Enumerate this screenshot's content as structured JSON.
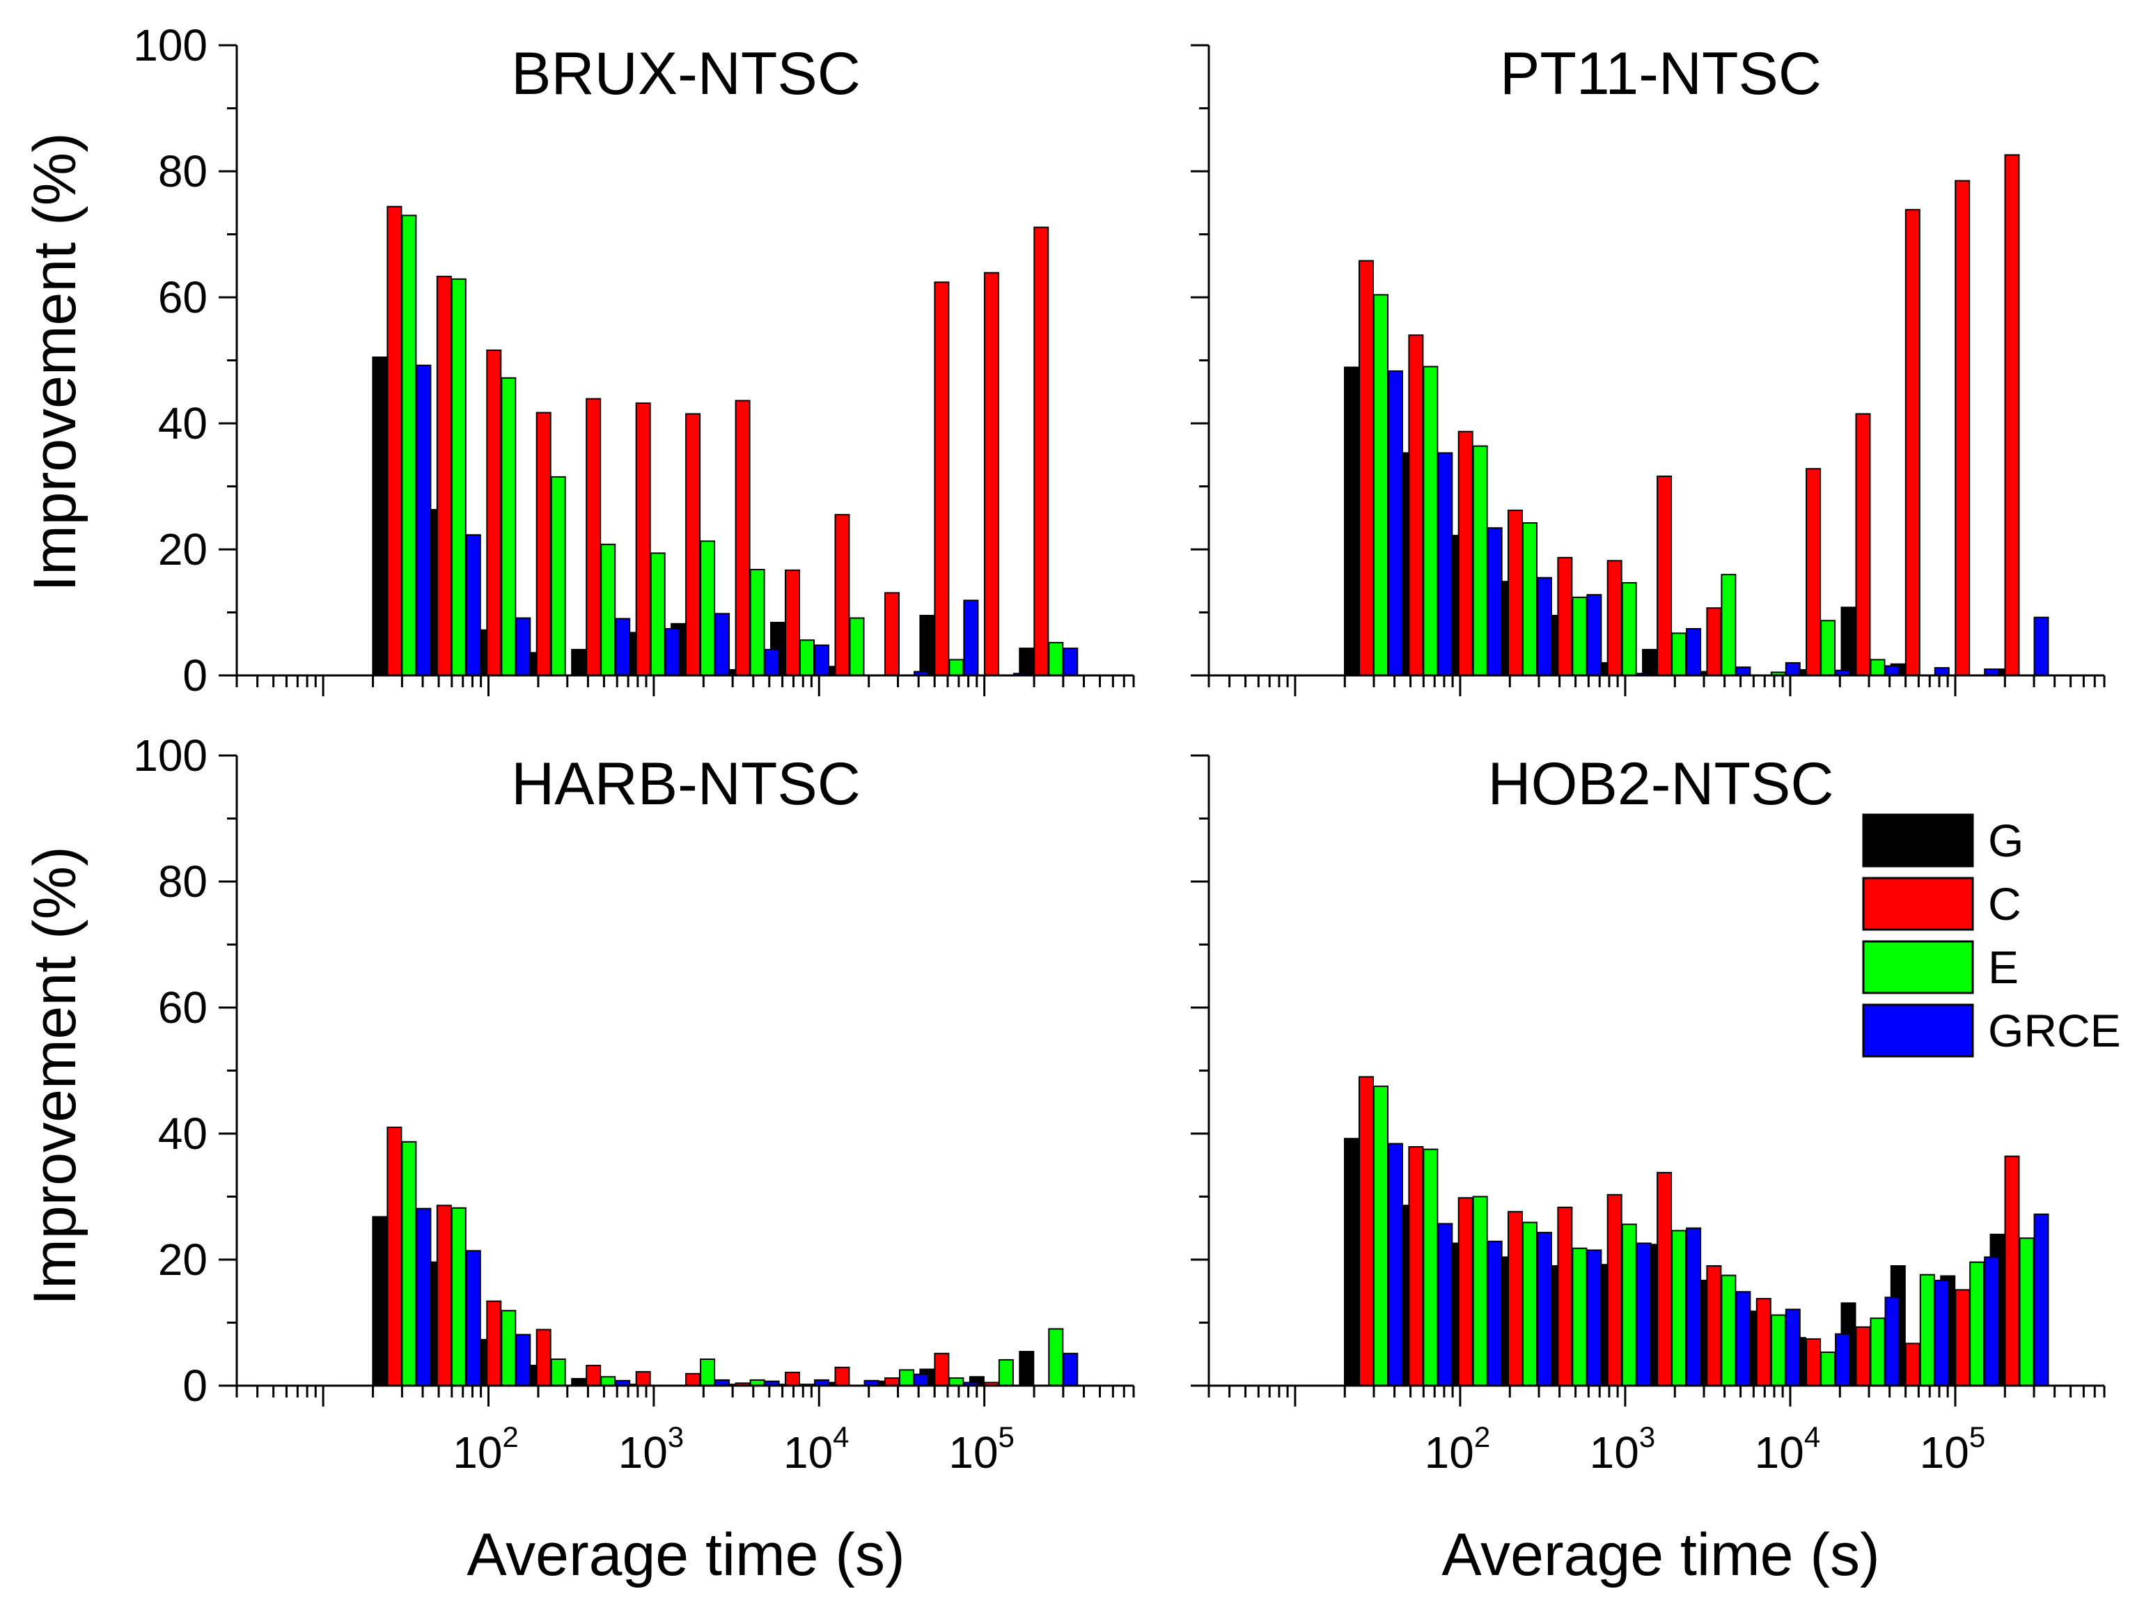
{
  "figure": {
    "ylabel": "Improvement (%)",
    "xlabel": "Average time (s)",
    "yticks": [
      "0",
      "20",
      "40",
      "60",
      "80",
      "100"
    ],
    "xticks": [
      {
        "base": "10",
        "exp": "2"
      },
      {
        "base": "10",
        "exp": "3"
      },
      {
        "base": "10",
        "exp": "4"
      },
      {
        "base": "10",
        "exp": "5"
      }
    ]
  },
  "legend": [
    {
      "label": "G",
      "color": "#000000"
    },
    {
      "label": "C",
      "color": "#ff0000"
    },
    {
      "label": "E",
      "color": "#00ff00"
    },
    {
      "label": "GRCE",
      "color": "#0000ff"
    }
  ],
  "chart_data": [
    {
      "type": "bar",
      "title": "BRUX-NTSC",
      "xlabel": "Average time (s)",
      "ylabel": "Improvement (%)",
      "xscale": "log",
      "xlim": [
        3,
        800000
      ],
      "ylim": [
        0,
        100
      ],
      "x": [
        30,
        60,
        120,
        240,
        480,
        960,
        1920,
        3840,
        7680,
        15360,
        30720,
        61440,
        122880,
        245760
      ],
      "series": [
        {
          "name": "G",
          "values": [
            50.5,
            26.3,
            7.2,
            3.6,
            4.1,
            6.8,
            8.2,
            0.9,
            8.4,
            1.4,
            0,
            9.5,
            0,
            4.3
          ]
        },
        {
          "name": "C",
          "values": [
            74.4,
            63.3,
            51.6,
            41.7,
            43.9,
            43.2,
            41.5,
            43.6,
            16.7,
            25.5,
            13.1,
            62.4,
            63.9,
            71.1
          ]
        },
        {
          "name": "E",
          "values": [
            73.0,
            62.9,
            47.2,
            31.5,
            20.8,
            19.4,
            21.3,
            16.8,
            5.6,
            9.1,
            0,
            2.5,
            0,
            5.2
          ]
        },
        {
          "name": "GRCE",
          "values": [
            49.2,
            22.3,
            9.1,
            0,
            9.0,
            7.4,
            9.8,
            4.1,
            4.8,
            0,
            0.6,
            11.9,
            0.3,
            4.3
          ]
        }
      ]
    },
    {
      "type": "bar",
      "title": "PT11-NTSC",
      "xlabel": "Average time (s)",
      "ylabel": "Improvement (%)",
      "xscale": "log",
      "xlim": [
        3,
        800000
      ],
      "ylim": [
        0,
        100
      ],
      "x": [
        30,
        60,
        120,
        240,
        480,
        960,
        1920,
        3840,
        7680,
        15360,
        30720,
        61440,
        122880,
        245760
      ],
      "series": [
        {
          "name": "G",
          "values": [
            48.9,
            35.3,
            22.2,
            14.9,
            9.5,
            2.0,
            4.1,
            0.6,
            0,
            0.9,
            10.8,
            1.8,
            0,
            1.0
          ]
        },
        {
          "name": "C",
          "values": [
            65.8,
            54.0,
            38.7,
            26.2,
            18.7,
            18.2,
            31.6,
            10.7,
            0,
            32.8,
            41.5,
            73.9,
            78.5,
            82.6
          ]
        },
        {
          "name": "E",
          "values": [
            60.4,
            49.0,
            36.4,
            24.2,
            12.4,
            14.7,
            6.7,
            16.0,
            0.5,
            8.7,
            2.5,
            0,
            0,
            0
          ]
        },
        {
          "name": "GRCE",
          "values": [
            48.3,
            35.3,
            23.4,
            15.5,
            12.8,
            0.3,
            7.4,
            1.3,
            2.0,
            0.8,
            1.5,
            1.2,
            1.0,
            9.2
          ]
        }
      ]
    },
    {
      "type": "bar",
      "title": "HARB-NTSC",
      "xlabel": "Average time (s)",
      "ylabel": "Improvement (%)",
      "xscale": "log",
      "xlim": [
        3,
        800000
      ],
      "ylim": [
        0,
        100
      ],
      "x": [
        30,
        60,
        120,
        240,
        480,
        960,
        1920,
        3840,
        7680,
        15360,
        30720,
        61440,
        122880,
        245760
      ],
      "series": [
        {
          "name": "G",
          "values": [
            26.8,
            19.6,
            7.3,
            3.2,
            1.1,
            0.2,
            0,
            0.2,
            0.2,
            0.5,
            0.7,
            2.6,
            1.4,
            5.4
          ]
        },
        {
          "name": "C",
          "values": [
            41.0,
            28.6,
            13.4,
            8.9,
            3.2,
            2.2,
            1.9,
            0.4,
            2.1,
            2.9,
            1.2,
            5.1,
            0.5,
            0
          ]
        },
        {
          "name": "E",
          "values": [
            38.7,
            28.2,
            11.9,
            4.2,
            1.4,
            0,
            4.2,
            0.9,
            0.2,
            0,
            2.5,
            1.2,
            4.1,
            9.0
          ]
        },
        {
          "name": "GRCE",
          "values": [
            28.1,
            21.4,
            8.1,
            0,
            0.8,
            0,
            0.9,
            0.7,
            0.9,
            0.8,
            1.8,
            0.5,
            0,
            5.1
          ]
        }
      ]
    },
    {
      "type": "bar",
      "title": "HOB2-NTSC",
      "xlabel": "Average time (s)",
      "ylabel": "Improvement (%)",
      "xscale": "log",
      "xlim": [
        3,
        800000
      ],
      "ylim": [
        0,
        100
      ],
      "x": [
        30,
        60,
        120,
        240,
        480,
        960,
        1920,
        3840,
        7680,
        15360,
        30720,
        61440,
        122880,
        245760
      ],
      "series": [
        {
          "name": "G",
          "values": [
            39.2,
            28.6,
            22.6,
            20.4,
            19.0,
            19.2,
            22.4,
            16.7,
            11.8,
            7.6,
            13.1,
            19.0,
            17.4,
            24.0
          ]
        },
        {
          "name": "C",
          "values": [
            49.0,
            37.9,
            29.8,
            27.6,
            28.3,
            30.3,
            33.8,
            19.0,
            13.8,
            7.4,
            9.3,
            6.7,
            15.2,
            36.4
          ]
        },
        {
          "name": "E",
          "values": [
            47.5,
            37.5,
            30.0,
            25.9,
            21.8,
            25.6,
            24.6,
            17.5,
            11.2,
            5.3,
            10.7,
            17.6,
            19.6,
            23.4
          ]
        },
        {
          "name": "GRCE",
          "values": [
            38.4,
            25.7,
            22.9,
            24.3,
            21.5,
            22.6,
            25.0,
            14.9,
            12.1,
            8.2,
            14.0,
            16.7,
            20.4,
            27.2
          ]
        }
      ]
    }
  ]
}
